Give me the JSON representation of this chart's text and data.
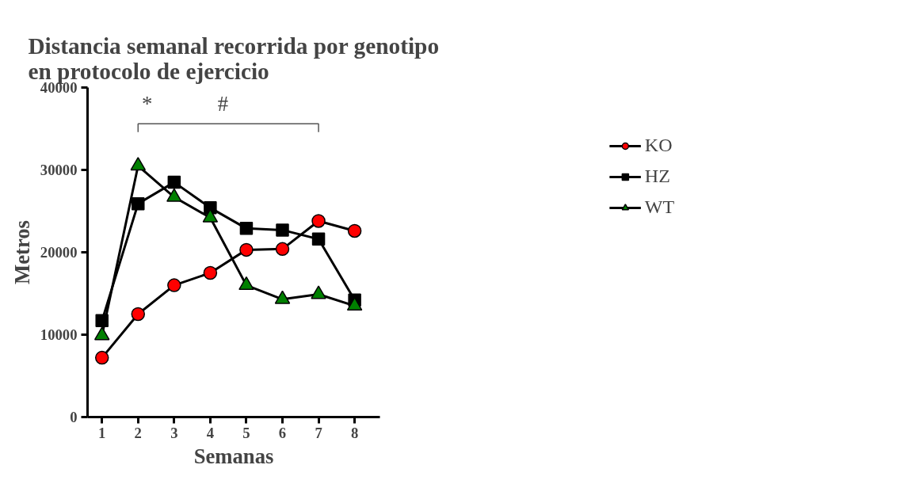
{
  "chart_data": {
    "type": "line",
    "title": "Distancia semanal recorrida por genotipo\nen protocolo de ejercicio",
    "xlabel": "Semanas",
    "ylabel": "Metros",
    "x": [
      1,
      2,
      3,
      4,
      5,
      6,
      7,
      8
    ],
    "xlim": [
      0.6,
      8.7
    ],
    "xticks": [
      1,
      2,
      3,
      4,
      5,
      6,
      7,
      8
    ],
    "ylim": [
      0,
      40000
    ],
    "yticks": [
      0,
      10000,
      20000,
      30000,
      40000
    ],
    "series": [
      {
        "name": "KO",
        "color": "#ff0000",
        "marker": "circle",
        "values": [
          7200,
          12500,
          16000,
          17500,
          20300,
          20400,
          23800,
          22600
        ]
      },
      {
        "name": "HZ",
        "color": "#000000",
        "marker": "square",
        "values": [
          11700,
          25900,
          28500,
          25400,
          22900,
          22700,
          21600,
          14200
        ]
      },
      {
        "name": "WT",
        "color": "#008000",
        "marker": "triangle",
        "values": [
          9900,
          30500,
          26700,
          24200,
          16000,
          14300,
          14900,
          13500
        ]
      }
    ],
    "annotations": [
      "*",
      "#"
    ],
    "grid": false,
    "legend": "right",
    "line_style": "solid"
  }
}
